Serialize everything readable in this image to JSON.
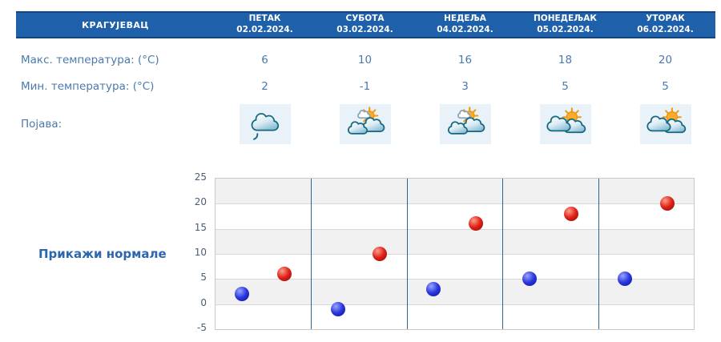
{
  "location": "КРАГУЈЕВАЦ",
  "table": {
    "row_labels": {
      "max": "Макс. температура: (°C)",
      "min": "Мин. температура: (°C)",
      "phenomenon": "Појава:"
    },
    "days": [
      {
        "name": "ПЕТАК",
        "date": "02.02.2024.",
        "max": "6",
        "min": "2",
        "icon": "cloud-drizzle-icon"
      },
      {
        "name": "СУБОТА",
        "date": "03.02.2024.",
        "max": "10",
        "min": "-1",
        "icon": "sun-behind-clouds-icon"
      },
      {
        "name": "НЕДЕЉА",
        "date": "04.02.2024.",
        "max": "16",
        "min": "3",
        "icon": "sun-behind-clouds-icon"
      },
      {
        "name": "ПОНЕДЕЉАК",
        "date": "05.02.2024.",
        "max": "18",
        "min": "5",
        "icon": "clouds-with-sun-icon"
      },
      {
        "name": "УТОРАК",
        "date": "06.02.2024.",
        "max": "20",
        "min": "5",
        "icon": "clouds-with-sun-icon"
      }
    ]
  },
  "actions": {
    "show_normals_label": "Прикажи нормале"
  },
  "chart_data": {
    "type": "scatter",
    "categories": [
      "ПЕТАК 02.02.2024.",
      "СУБОТА 03.02.2024.",
      "НЕДЕЉА 04.02.2024.",
      "ПОНЕДЕЉАК 05.02.2024.",
      "УТОРАК 06.02.2024."
    ],
    "series": [
      {
        "name": "Мин. температура (°C)",
        "color": "#1b23c8",
        "values": [
          2,
          -1,
          3,
          5,
          5
        ]
      },
      {
        "name": "Макс. температура (°C)",
        "color": "#d01615",
        "values": [
          6,
          10,
          16,
          18,
          20
        ]
      }
    ],
    "ylim": [
      -5,
      25
    ],
    "yticks": [
      25,
      20,
      15,
      10,
      5,
      0,
      -5
    ],
    "grid": true,
    "legend": "none",
    "band_colors": [
      "#f1f1f1",
      "#ffffff"
    ],
    "separator_color": "#2d6293"
  },
  "colors": {
    "header_bg": "#1e60a9",
    "header_border": "#15457c",
    "text_blue": "#4b79ad",
    "link_blue": "#2b66ae",
    "icon_cell_bg": "#e9f1f9",
    "min_dot": "#1b23c8",
    "max_dot": "#d01615"
  }
}
